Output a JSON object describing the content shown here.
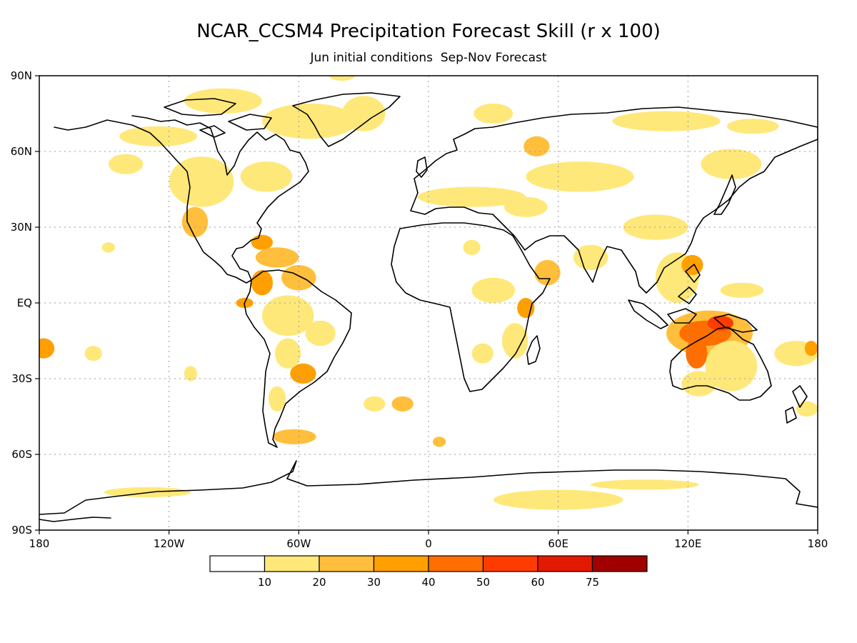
{
  "header": {
    "title": "NCAR_CCSM4 Precipitation Forecast Skill (r x 100)",
    "subtitle": "Jun initial conditions  Sep-Nov Forecast"
  },
  "map": {
    "lon_range": [
      -180,
      180
    ],
    "lat_range": [
      -90,
      90
    ],
    "lon_ticks": [
      {
        "lon": -180,
        "label": "180"
      },
      {
        "lon": -120,
        "label": "120W"
      },
      {
        "lon": -60,
        "label": "60W"
      },
      {
        "lon": 0,
        "label": "0"
      },
      {
        "lon": 60,
        "label": "60E"
      },
      {
        "lon": 120,
        "label": "120E"
      },
      {
        "lon": 180,
        "label": "180"
      }
    ],
    "lat_ticks": [
      {
        "lat": 90,
        "label": "90N"
      },
      {
        "lat": 60,
        "label": "60N"
      },
      {
        "lat": 30,
        "label": "30N"
      },
      {
        "lat": 0,
        "label": "EQ"
      },
      {
        "lat": -30,
        "label": "30S"
      },
      {
        "lat": -60,
        "label": "60S"
      },
      {
        "lat": -90,
        "label": "90S"
      }
    ],
    "grid": "dotted"
  },
  "colorbar": {
    "bins": [
      {
        "color": "#ffffff"
      },
      {
        "color": "#ffe87a"
      },
      {
        "color": "#ffbf3c"
      },
      {
        "color": "#ffa000"
      },
      {
        "color": "#ff6e00"
      },
      {
        "color": "#ff3c00"
      },
      {
        "color": "#e31a00"
      },
      {
        "color": "#a00000"
      }
    ],
    "labels": [
      "10",
      "20",
      "30",
      "40",
      "50",
      "60",
      "75"
    ]
  },
  "skill_regions": [
    {
      "lon": -55,
      "lat": 72,
      "rx": 22,
      "ry": 7,
      "level": 1
    },
    {
      "lon": -95,
      "lat": 80,
      "rx": 18,
      "ry": 5,
      "level": 1
    },
    {
      "lon": -30,
      "lat": 75,
      "rx": 10,
      "ry": 7,
      "level": 1
    },
    {
      "lon": 30,
      "lat": 75,
      "rx": 9,
      "ry": 4,
      "level": 1
    },
    {
      "lon": 110,
      "lat": 72,
      "rx": 25,
      "ry": 4,
      "level": 1
    },
    {
      "lon": 150,
      "lat": 70,
      "rx": 12,
      "ry": 3,
      "level": 1
    },
    {
      "lon": 140,
      "lat": 55,
      "rx": 14,
      "ry": 6,
      "level": 1
    },
    {
      "lon": 50,
      "lat": 62,
      "rx": 6,
      "ry": 4,
      "level": 2
    },
    {
      "lon": 70,
      "lat": 50,
      "rx": 25,
      "ry": 6,
      "level": 1
    },
    {
      "lon": 20,
      "lat": 42,
      "rx": 25,
      "ry": 4,
      "level": 1
    },
    {
      "lon": 45,
      "lat": 38,
      "rx": 10,
      "ry": 4,
      "level": 1
    },
    {
      "lon": -105,
      "lat": 48,
      "rx": 15,
      "ry": 10,
      "level": 1
    },
    {
      "lon": -125,
      "lat": 66,
      "rx": 18,
      "ry": 4,
      "level": 1
    },
    {
      "lon": -140,
      "lat": 55,
      "rx": 8,
      "ry": 4,
      "level": 1
    },
    {
      "lon": -75,
      "lat": 50,
      "rx": 12,
      "ry": 6,
      "level": 1
    },
    {
      "lon": -108,
      "lat": 32,
      "rx": 6,
      "ry": 6,
      "level": 2
    },
    {
      "lon": -77,
      "lat": 24,
      "rx": 5,
      "ry": 3,
      "level": 3
    },
    {
      "lon": -70,
      "lat": 18,
      "rx": 10,
      "ry": 4,
      "level": 2
    },
    {
      "lon": -60,
      "lat": 10,
      "rx": 8,
      "ry": 5,
      "level": 2
    },
    {
      "lon": -77,
      "lat": 8,
      "rx": 5,
      "ry": 5,
      "level": 3
    },
    {
      "lon": -85,
      "lat": 0,
      "rx": 4,
      "ry": 2,
      "level": 3
    },
    {
      "lon": -65,
      "lat": -5,
      "rx": 12,
      "ry": 8,
      "level": 1
    },
    {
      "lon": -50,
      "lat": -12,
      "rx": 7,
      "ry": 5,
      "level": 1
    },
    {
      "lon": -58,
      "lat": -28,
      "rx": 6,
      "ry": 4,
      "level": 3
    },
    {
      "lon": -65,
      "lat": -20,
      "rx": 6,
      "ry": 6,
      "level": 1
    },
    {
      "lon": -70,
      "lat": -38,
      "rx": 4,
      "ry": 5,
      "level": 1
    },
    {
      "lon": -62,
      "lat": -53,
      "rx": 10,
      "ry": 3,
      "level": 2
    },
    {
      "lon": 20,
      "lat": 22,
      "rx": 4,
      "ry": 3,
      "level": 1
    },
    {
      "lon": 30,
      "lat": 5,
      "rx": 10,
      "ry": 5,
      "level": 1
    },
    {
      "lon": 45,
      "lat": -2,
      "rx": 4,
      "ry": 4,
      "level": 3
    },
    {
      "lon": 55,
      "lat": 12,
      "rx": 6,
      "ry": 5,
      "level": 2
    },
    {
      "lon": 40,
      "lat": -15,
      "rx": 6,
      "ry": 7,
      "level": 1
    },
    {
      "lon": 25,
      "lat": -20,
      "rx": 5,
      "ry": 4,
      "level": 1
    },
    {
      "lon": -12,
      "lat": -40,
      "rx": 5,
      "ry": 3,
      "level": 2
    },
    {
      "lon": 5,
      "lat": -55,
      "rx": 3,
      "ry": 2,
      "level": 2
    },
    {
      "lon": 75,
      "lat": 18,
      "rx": 8,
      "ry": 5,
      "level": 1
    },
    {
      "lon": 105,
      "lat": 30,
      "rx": 15,
      "ry": 5,
      "level": 1
    },
    {
      "lon": 115,
      "lat": 10,
      "rx": 10,
      "ry": 10,
      "level": 1
    },
    {
      "lon": 122,
      "lat": 15,
      "rx": 5,
      "ry": 4,
      "level": 3
    },
    {
      "lon": 130,
      "lat": -12,
      "rx": 20,
      "ry": 9,
      "level": 2
    },
    {
      "lon": 128,
      "lat": -12,
      "rx": 12,
      "ry": 5,
      "level": 4
    },
    {
      "lon": 135,
      "lat": -8,
      "rx": 6,
      "ry": 3,
      "level": 5
    },
    {
      "lon": 124,
      "lat": -20,
      "rx": 5,
      "ry": 6,
      "level": 4
    },
    {
      "lon": 140,
      "lat": -25,
      "rx": 12,
      "ry": 10,
      "level": 1
    },
    {
      "lon": 125,
      "lat": -32,
      "rx": 8,
      "ry": 5,
      "level": 1
    },
    {
      "lon": 145,
      "lat": 5,
      "rx": 10,
      "ry": 3,
      "level": 1
    },
    {
      "lon": 170,
      "lat": -20,
      "rx": 10,
      "ry": 5,
      "level": 1
    },
    {
      "lon": 177,
      "lat": -18,
      "rx": 3,
      "ry": 3,
      "level": 3
    },
    {
      "lon": 175,
      "lat": -42,
      "rx": 5,
      "ry": 3,
      "level": 1
    },
    {
      "lon": -178,
      "lat": -18,
      "rx": 5,
      "ry": 4,
      "level": 3
    },
    {
      "lon": -155,
      "lat": -20,
      "rx": 4,
      "ry": 3,
      "level": 1
    },
    {
      "lon": -148,
      "lat": 22,
      "rx": 3,
      "ry": 2,
      "level": 1
    },
    {
      "lon": -110,
      "lat": -28,
      "rx": 3,
      "ry": 3,
      "level": 1
    },
    {
      "lon": -25,
      "lat": -40,
      "rx": 5,
      "ry": 3,
      "level": 1
    },
    {
      "lon": 60,
      "lat": -78,
      "rx": 30,
      "ry": 4,
      "level": 1
    },
    {
      "lon": 100,
      "lat": -72,
      "rx": 25,
      "ry": 2,
      "level": 1
    },
    {
      "lon": -130,
      "lat": -75,
      "rx": 20,
      "ry": 2,
      "level": 1
    },
    {
      "lon": -40,
      "lat": 90,
      "rx": 6,
      "ry": 2,
      "level": 1
    }
  ]
}
